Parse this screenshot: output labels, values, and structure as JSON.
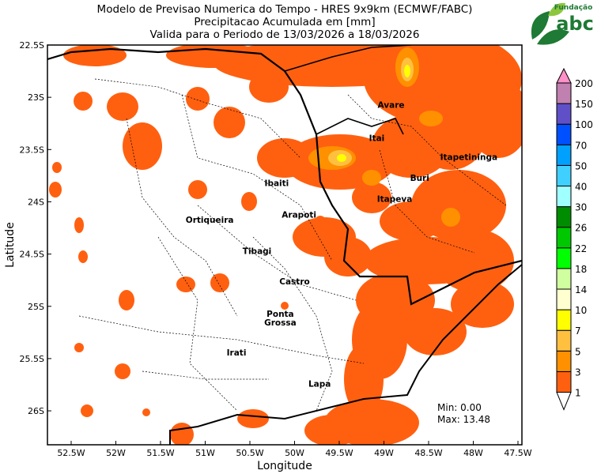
{
  "title": {
    "line1": "Modelo de Previsao Numerica do Tempo - HRES 9x9km (ECMWF/FABC)",
    "line2": "Precipitacao Acumulada em [mm]",
    "line3": "Valida para o Periodo de 13/03/2026 a 18/03/2026"
  },
  "logo": {
    "text_top": "Fundação",
    "text_main": "abc",
    "colors": [
      "#1e7a34",
      "#8cc63f"
    ]
  },
  "axes": {
    "xlabel": "Longitude",
    "ylabel": "Latitude",
    "xticks": [
      "52.5W",
      "52W",
      "51.5W",
      "51W",
      "50.5W",
      "50W",
      "49.5W",
      "49W",
      "48.5W",
      "48W",
      "47.5W"
    ],
    "yticks": [
      "22.5S",
      "23S",
      "23.5S",
      "24S",
      "24.5S",
      "25S",
      "25.5S",
      "26S"
    ]
  },
  "cities": [
    {
      "name": "Avare",
      "lon": -48.92,
      "lat": -23.1
    },
    {
      "name": "Itai",
      "lon": -49.08,
      "lat": -23.42
    },
    {
      "name": "Itapetininga",
      "lon": -48.05,
      "lat": -23.6
    },
    {
      "name": "Buri",
      "lon": -48.6,
      "lat": -23.8
    },
    {
      "name": "Ibaiti",
      "lon": -50.2,
      "lat": -23.85
    },
    {
      "name": "Itapeva",
      "lon": -48.88,
      "lat": -24.0
    },
    {
      "name": "Ortiqueira",
      "lon": -50.95,
      "lat": -24.2
    },
    {
      "name": "Arapoti",
      "lon": -49.95,
      "lat": -24.15
    },
    {
      "name": "Tibagi",
      "lon": -50.42,
      "lat": -24.5
    },
    {
      "name": "Castro",
      "lon": -50.0,
      "lat": -24.79
    },
    {
      "name": "Ponta Grossa",
      "lon": -50.16,
      "lat": -25.1
    },
    {
      "name": "Irati",
      "lon": -50.65,
      "lat": -25.47
    },
    {
      "name": "Lapa",
      "lon": -49.72,
      "lat": -25.77
    }
  ],
  "stats": {
    "min": "Min: 0.00",
    "max": "Max: 13.48"
  },
  "colorbar": {
    "labels": [
      "1",
      "3",
      "5",
      "7",
      "10",
      "14",
      "18",
      "22",
      "26",
      "30",
      "40",
      "50",
      "70",
      "100",
      "150",
      "200"
    ],
    "colors": [
      "#ff6010",
      "#ff9000",
      "#ffc040",
      "#ffff00",
      "#ffffd0",
      "#d0ffa0",
      "#00ff00",
      "#00c800",
      "#008c00",
      "#a0ffff",
      "#40d0ff",
      "#00a0ff",
      "#0050ff",
      "#6050c8",
      "#c080b0"
    ],
    "under_color": "#ffffff",
    "over_color": "#ff90c8"
  },
  "field_colors": {
    "light": "#ff6010",
    "medium": "#ff9000",
    "heavy": "#ffc040",
    "peak": "#ffff00"
  }
}
